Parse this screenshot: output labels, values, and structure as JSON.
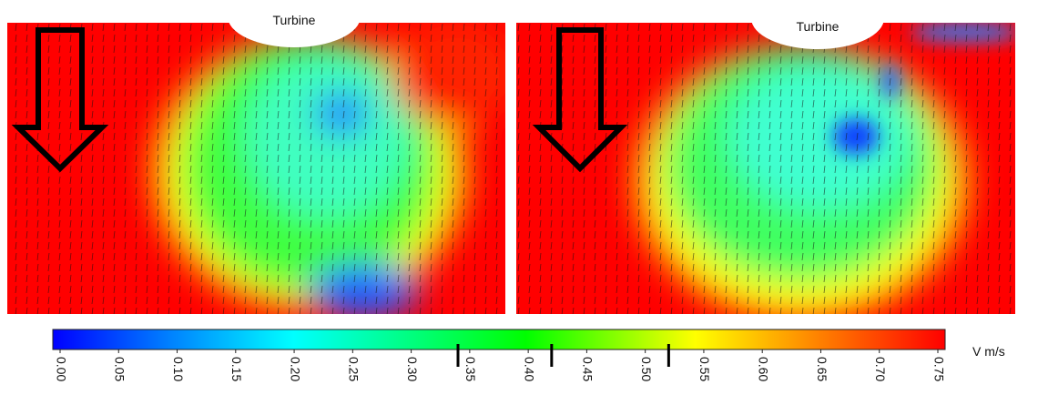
{
  "panels": [
    {
      "label": "Turbine"
    },
    {
      "label": "Turbine"
    }
  ],
  "colorbar": {
    "range": [
      0,
      0.75
    ],
    "unit": "V m/s",
    "ticks": [
      {
        "value": 0,
        "label": "0.00"
      },
      {
        "value": 0.05,
        "label": "0.05"
      },
      {
        "value": 0.1,
        "label": "0.10"
      },
      {
        "value": 0.15,
        "label": "0.15"
      },
      {
        "value": 0.2,
        "label": "0.20"
      },
      {
        "value": 0.25,
        "label": "0.25"
      },
      {
        "value": 0.3,
        "label": "0.30"
      },
      {
        "value": 0.35,
        "label": "0.35"
      },
      {
        "value": 0.4,
        "label": "0.40"
      },
      {
        "value": 0.45,
        "label": "0.45"
      },
      {
        "value": 0.5,
        "label": "0.50"
      },
      {
        "value": 0.55,
        "label": "0.55"
      },
      {
        "value": 0.6,
        "label": "0.60"
      },
      {
        "value": 0.65,
        "label": "0.65"
      },
      {
        "value": 0.7,
        "label": "0.70"
      },
      {
        "value": 0.75,
        "label": "0.75"
      }
    ],
    "markers": [
      0.34,
      0.42,
      0.52
    ]
  }
}
